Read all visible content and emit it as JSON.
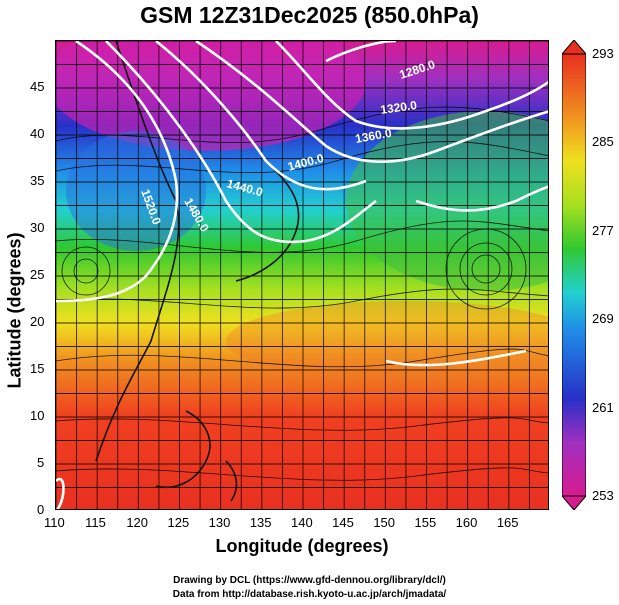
{
  "title": "GSM 12Z31Dec2025 (850.0hPa)",
  "axes": {
    "xlabel": "Longitude (degrees)",
    "ylabel": "Latitude  (degrees)",
    "xticks": [
      "110",
      "115",
      "120",
      "125",
      "130",
      "135",
      "140",
      "145",
      "150",
      "155",
      "160",
      "165"
    ],
    "yticks": [
      "0",
      "5",
      "10",
      "15",
      "20",
      "25",
      "30",
      "35",
      "40",
      "45"
    ],
    "xlim": [
      110,
      170
    ],
    "ylim": [
      0,
      50
    ]
  },
  "colorbar": {
    "labels": [
      "293",
      "285",
      "277",
      "269",
      "261",
      "253"
    ],
    "range": [
      253,
      293
    ],
    "colors": [
      "#d81b8f",
      "#a030c0",
      "#2830c8",
      "#2090e8",
      "#22d0d0",
      "#30c830",
      "#a8e020",
      "#f0e020",
      "#f09020",
      "#f04020",
      "#e83020"
    ]
  },
  "contours": [
    {
      "label": "1280.0"
    },
    {
      "label": "1320.0"
    },
    {
      "label": "1360.0"
    },
    {
      "label": "1400.0"
    },
    {
      "label": "1440.0"
    },
    {
      "label": "1480.0"
    },
    {
      "label": "1520.0"
    }
  ],
  "credits": {
    "line1": "Drawing by DCL (https://www.gfd-dennou.org/library/dcl/)",
    "line2": "Data from http://database.rish.kyoto-u.ac.jp/arch/jmadata/"
  },
  "chart_data": {
    "type": "heatmap",
    "title": "GSM 12Z31Dec2025 (850.0hPa)",
    "xlabel": "Longitude (degrees)",
    "ylabel": "Latitude  (degrees)",
    "xlim": [
      110,
      170
    ],
    "ylim": [
      0,
      50
    ],
    "color_range": [
      253,
      293
    ],
    "contour_levels": [
      1280,
      1320,
      1360,
      1400,
      1440,
      1480,
      1520
    ]
  }
}
